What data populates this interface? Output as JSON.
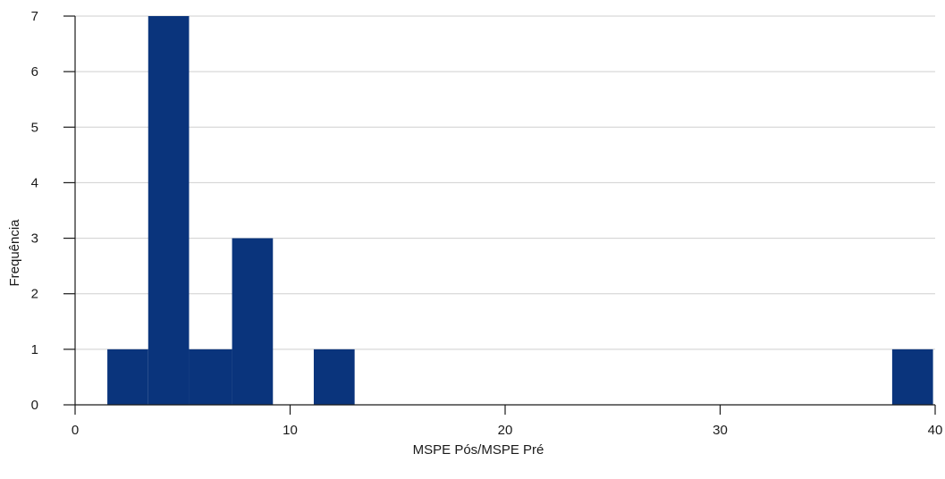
{
  "chart_data": {
    "type": "bar",
    "subtype": "histogram",
    "title": "",
    "xlabel": "MSPE Pós/MSPE Pré",
    "ylabel": "Frequência",
    "xlim": [
      0,
      40
    ],
    "ylim": [
      0,
      7
    ],
    "xticks": [
      0,
      10,
      20,
      30,
      40
    ],
    "yticks": [
      0,
      1,
      2,
      3,
      4,
      5,
      6,
      7
    ],
    "grid": "horizontal",
    "bins": [
      {
        "x0": 1.5,
        "x1": 3.4,
        "count": 1
      },
      {
        "x0": 3.4,
        "x1": 5.3,
        "count": 7
      },
      {
        "x0": 5.3,
        "x1": 7.3,
        "count": 1
      },
      {
        "x0": 7.3,
        "x1": 9.2,
        "count": 3
      },
      {
        "x0": 11.1,
        "x1": 13.0,
        "count": 1
      },
      {
        "x0": 38.0,
        "x1": 39.9,
        "count": 1
      }
    ],
    "colors": {
      "bar": "#0a347c",
      "grid": "#cfcfcf",
      "axis": "#1a1a1a"
    }
  }
}
